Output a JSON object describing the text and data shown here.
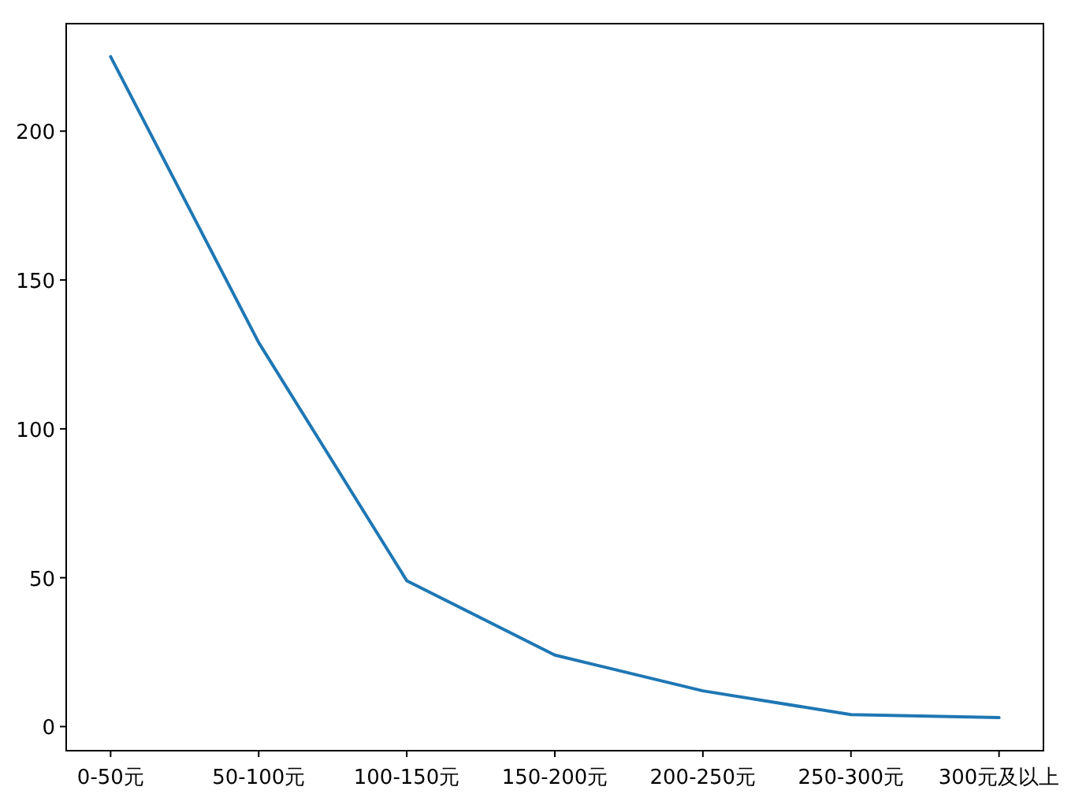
{
  "chart_data": {
    "type": "line",
    "categories": [
      "0-50元",
      "50-100元",
      "100-150元",
      "150-200元",
      "200-250元",
      "250-300元",
      "300元及以上"
    ],
    "values": [
      225,
      129,
      49,
      24,
      12,
      4,
      3
    ],
    "color": "#1f77b4",
    "ylim": [
      -8.1,
      236.1
    ],
    "yticks": [
      0,
      50,
      100,
      150,
      200
    ]
  }
}
